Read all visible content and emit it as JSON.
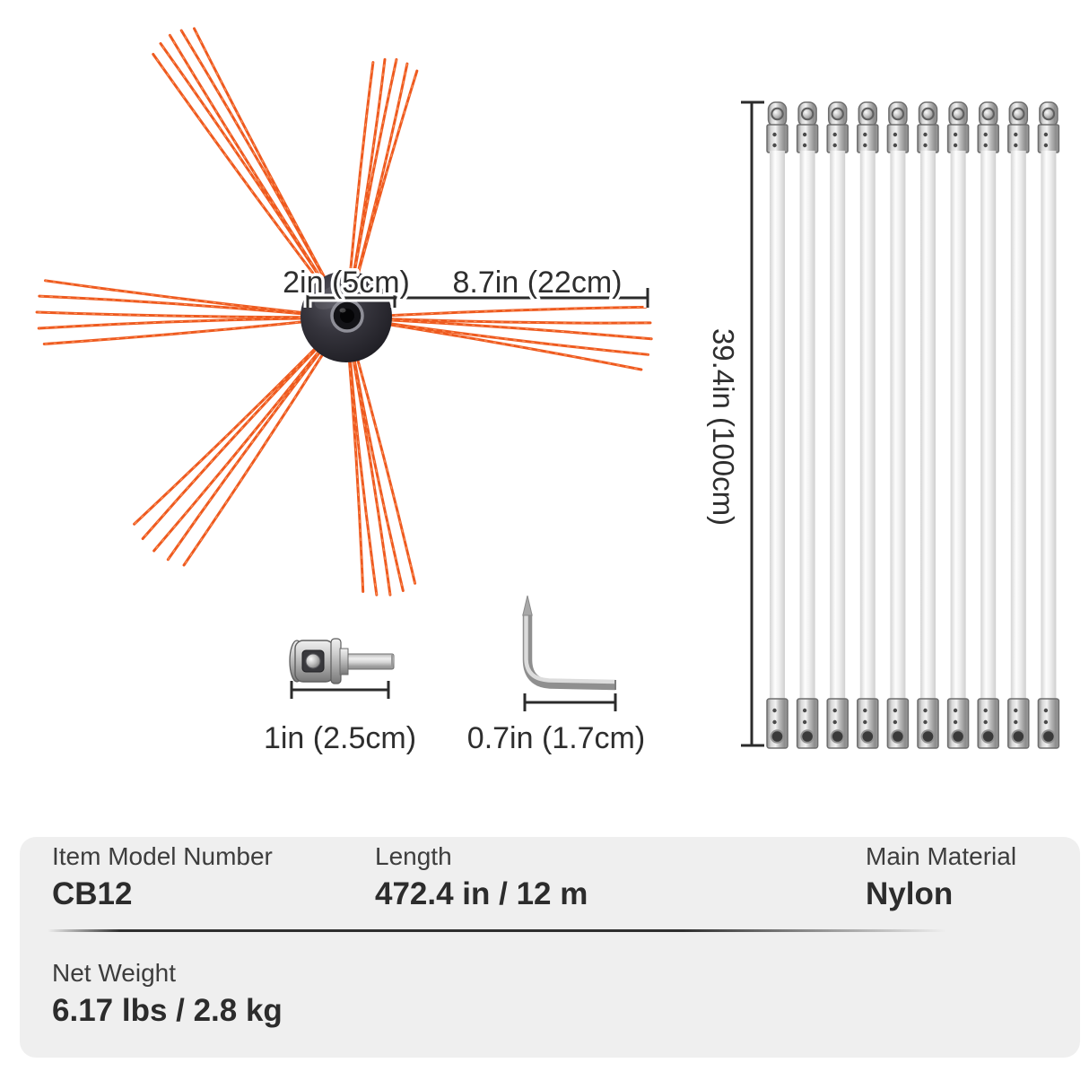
{
  "diagram": {
    "rod_count": 10,
    "dimension_labels": {
      "hub_width": "2in (5cm)",
      "brush_reach": "8.7in (22cm)",
      "rod_length": "39.4in (100cm)",
      "adapter_length": "1in (2.5cm)",
      "hex_key_length": "0.7in (1.7cm)"
    }
  },
  "specs": {
    "cells": [
      {
        "label": "Item Model Number",
        "value": "CB12"
      },
      {
        "label": "Length",
        "value": "472.4 in / 12 m"
      },
      {
        "label": "Main Material",
        "value": "Nylon"
      },
      {
        "label": "Net Weight",
        "value": "6.17 lbs / 2.8 kg"
      }
    ]
  },
  "colors": {
    "background": "#ffffff",
    "bristle_orange": "#ee5a1f",
    "bristle_highlight": "#ffa06a",
    "hub_dark": "#232228",
    "metal_silver": "#bebebe",
    "dimension_line": "#2b2b2b",
    "label_text": "#2e2e2e",
    "table_background": "#efefef",
    "table_label_text": "#3d3d3d",
    "table_value_text": "#2c2c2c"
  }
}
